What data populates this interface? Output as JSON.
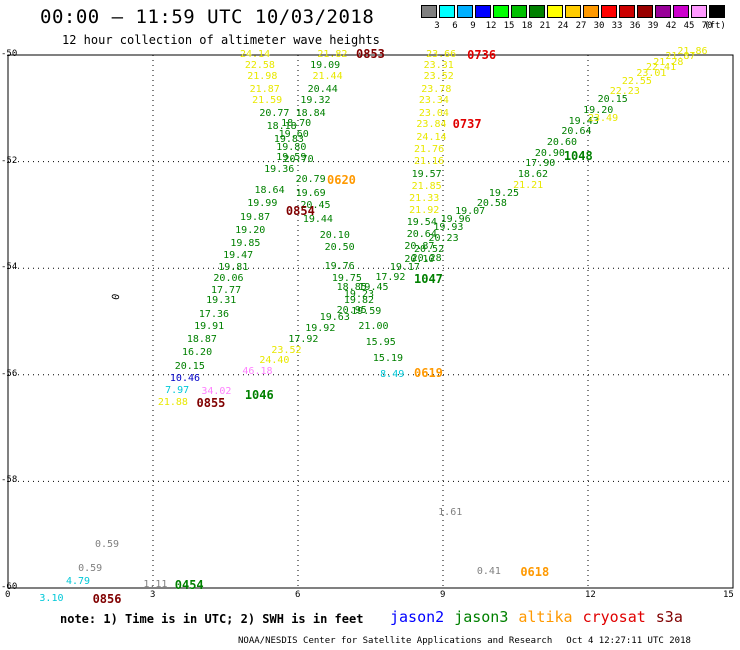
{
  "header": {
    "title": "00:00 – 11:59 UTC 10/03/2018",
    "subtitle": "12 hour collection of altimeter wave heights"
  },
  "legend": {
    "unit": "(ft)",
    "bins": [
      {
        "label": "3",
        "color": "#808080"
      },
      {
        "label": "6",
        "color": "#00ffff"
      },
      {
        "label": "9",
        "color": "#00b0ff"
      },
      {
        "label": "12",
        "color": "#0000ff"
      },
      {
        "label": "15",
        "color": "#00ff00"
      },
      {
        "label": "18",
        "color": "#00c000"
      },
      {
        "label": "21",
        "color": "#008000"
      },
      {
        "label": "24",
        "color": "#ffff00"
      },
      {
        "label": "27",
        "color": "#ffcc00"
      },
      {
        "label": "30",
        "color": "#ff9900"
      },
      {
        "label": "33",
        "color": "#ff0000"
      },
      {
        "label": "36",
        "color": "#cc0000"
      },
      {
        "label": "39",
        "color": "#990000"
      },
      {
        "label": "42",
        "color": "#990099"
      },
      {
        "label": "45",
        "color": "#cc00cc"
      },
      {
        "label": "70",
        "color": "#ff99ff"
      },
      {
        "label": "",
        "color": "#000000"
      }
    ]
  },
  "axes": {
    "y_ticks": [
      "-50",
      "-52",
      "-54",
      "-56",
      "-58",
      "-60"
    ],
    "x_ticks": [
      "0",
      "3",
      "6",
      "9",
      "12",
      "15"
    ]
  },
  "colors": {
    "grey": "#808080",
    "cyan": "#00c8d8",
    "blue": "#0000c8",
    "green": "#008000",
    "yellow": "#e8e800",
    "orange": "#ff9900",
    "red": "#e00000",
    "maroon": "#800000",
    "pink": "#ff80ff"
  },
  "observations": [
    {
      "text": "24.14",
      "c": "yellow",
      "lon": 4.8,
      "lat": -50.0
    },
    {
      "text": "22.58",
      "c": "yellow",
      "lon": 4.9,
      "lat": -50.2
    },
    {
      "text": "21.98",
      "c": "yellow",
      "lon": 4.95,
      "lat": -50.42
    },
    {
      "text": "21.87",
      "c": "yellow",
      "lon": 5.0,
      "lat": -50.65
    },
    {
      "text": "21.59",
      "c": "yellow",
      "lon": 5.05,
      "lat": -50.87
    },
    {
      "text": "20.77",
      "c": "green",
      "lon": 5.2,
      "lat": -51.1
    },
    {
      "text": "18.70",
      "c": "green",
      "lon": 5.65,
      "lat": -51.3
    },
    {
      "text": "18.18",
      "c": "green",
      "lon": 5.35,
      "lat": -51.35
    },
    {
      "text": "19.60",
      "c": "green",
      "lon": 5.6,
      "lat": -51.5
    },
    {
      "text": "19.83",
      "c": "green",
      "lon": 5.5,
      "lat": -51.6
    },
    {
      "text": "19.80",
      "c": "green",
      "lon": 5.55,
      "lat": -51.75
    },
    {
      "text": "19.59",
      "c": "green",
      "lon": 5.55,
      "lat": -51.93
    },
    {
      "text": "20.70",
      "c": "green",
      "lon": 5.7,
      "lat": -51.97
    },
    {
      "text": "19.36",
      "c": "green",
      "lon": 5.3,
      "lat": -52.15
    },
    {
      "text": "20.79",
      "c": "green",
      "lon": 5.95,
      "lat": -52.35
    },
    {
      "text": "18.64",
      "c": "green",
      "lon": 5.1,
      "lat": -52.55
    },
    {
      "text": "19.69",
      "c": "green",
      "lon": 5.95,
      "lat": -52.6
    },
    {
      "text": "19.99",
      "c": "green",
      "lon": 4.95,
      "lat": -52.8
    },
    {
      "text": "20.45",
      "c": "green",
      "lon": 6.05,
      "lat": -52.83
    },
    {
      "text": "19.87",
      "c": "green",
      "lon": 4.8,
      "lat": -53.05
    },
    {
      "text": "19.44",
      "c": "green",
      "lon": 6.1,
      "lat": -53.1
    },
    {
      "text": "19.20",
      "c": "green",
      "lon": 4.7,
      "lat": -53.3
    },
    {
      "text": "20.10",
      "c": "green",
      "lon": 6.45,
      "lat": -53.4
    },
    {
      "text": "19.85",
      "c": "green",
      "lon": 4.6,
      "lat": -53.55
    },
    {
      "text": "20.50",
      "c": "green",
      "lon": 6.55,
      "lat": -53.63
    },
    {
      "text": "19.47",
      "c": "green",
      "lon": 4.45,
      "lat": -53.78
    },
    {
      "text": "19.81",
      "c": "green",
      "lon": 4.35,
      "lat": -54.0
    },
    {
      "text": "19.76",
      "c": "green",
      "lon": 6.55,
      "lat": -53.97
    },
    {
      "text": "20.06",
      "c": "green",
      "lon": 4.25,
      "lat": -54.2
    },
    {
      "text": "19.75",
      "c": "green",
      "lon": 6.7,
      "lat": -54.2
    },
    {
      "text": "17.77",
      "c": "green",
      "lon": 4.2,
      "lat": -54.42
    },
    {
      "text": "18.85",
      "c": "green",
      "lon": 6.8,
      "lat": -54.38
    },
    {
      "text": "19.45",
      "c": "green",
      "lon": 7.25,
      "lat": -54.38
    },
    {
      "text": "19.23",
      "c": "green",
      "lon": 6.95,
      "lat": -54.5
    },
    {
      "text": "19.31",
      "c": "green",
      "lon": 4.1,
      "lat": -54.62
    },
    {
      "text": "19.82",
      "c": "green",
      "lon": 6.95,
      "lat": -54.62
    },
    {
      "text": "20.95",
      "c": "green",
      "lon": 6.8,
      "lat": -54.8
    },
    {
      "text": "19.59",
      "c": "green",
      "lon": 7.1,
      "lat": -54.83
    },
    {
      "text": "17.36",
      "c": "green",
      "lon": 3.95,
      "lat": -54.87
    },
    {
      "text": "19.63",
      "c": "green",
      "lon": 6.45,
      "lat": -54.93
    },
    {
      "text": "19.91",
      "c": "green",
      "lon": 3.85,
      "lat": -55.1
    },
    {
      "text": "21.00",
      "c": "green",
      "lon": 7.25,
      "lat": -55.1
    },
    {
      "text": "19.92",
      "c": "green",
      "lon": 6.15,
      "lat": -55.15
    },
    {
      "text": "18.87",
      "c": "green",
      "lon": 3.7,
      "lat": -55.35
    },
    {
      "text": "17.92",
      "c": "green",
      "lon": 5.8,
      "lat": -55.35
    },
    {
      "text": "15.95",
      "c": "green",
      "lon": 7.4,
      "lat": -55.4
    },
    {
      "text": "16.20",
      "c": "green",
      "lon": 3.6,
      "lat": -55.6
    },
    {
      "text": "23.52",
      "c": "yellow",
      "lon": 5.45,
      "lat": -55.55
    },
    {
      "text": "15.19",
      "c": "green",
      "lon": 7.55,
      "lat": -55.7
    },
    {
      "text": "20.15",
      "c": "green",
      "lon": 3.45,
      "lat": -55.85
    },
    {
      "text": "24.40",
      "c": "yellow",
      "lon": 5.2,
      "lat": -55.75
    },
    {
      "text": "46.18",
      "c": "pink",
      "lon": 4.85,
      "lat": -55.95
    },
    {
      "text": "10.46",
      "c": "blue",
      "lon": 3.35,
      "lat": -56.07
    },
    {
      "text": "7.97",
      "c": "cyan",
      "lon": 3.25,
      "lat": -56.3
    },
    {
      "text": "34.02",
      "c": "pink",
      "lon": 4.0,
      "lat": -56.33
    },
    {
      "text": "21.88",
      "c": "yellow",
      "lon": 3.1,
      "lat": -56.53
    },
    {
      "text": "8.49",
      "c": "cyan",
      "lon": 7.7,
      "lat": -56.0
    },
    {
      "text": "21.82",
      "c": "yellow",
      "lon": 6.4,
      "lat": -50.0
    },
    {
      "text": "19.09",
      "c": "green",
      "lon": 6.25,
      "lat": -50.2
    },
    {
      "text": "21.44",
      "c": "yellow",
      "lon": 6.3,
      "lat": -50.42
    },
    {
      "text": "20.44",
      "c": "green",
      "lon": 6.2,
      "lat": -50.65
    },
    {
      "text": "19.32",
      "c": "green",
      "lon": 6.05,
      "lat": -50.87
    },
    {
      "text": "18.84",
      "c": "green",
      "lon": 5.95,
      "lat": -51.1
    },
    {
      "text": "23.66",
      "c": "yellow",
      "lon": 8.65,
      "lat": -50.0
    },
    {
      "text": "23.31",
      "c": "yellow",
      "lon": 8.6,
      "lat": -50.2
    },
    {
      "text": "23.52",
      "c": "yellow",
      "lon": 8.6,
      "lat": -50.42
    },
    {
      "text": "23.78",
      "c": "yellow",
      "lon": 8.55,
      "lat": -50.65
    },
    {
      "text": "23.34",
      "c": "yellow",
      "lon": 8.5,
      "lat": -50.87
    },
    {
      "text": "23.04",
      "c": "yellow",
      "lon": 8.5,
      "lat": -51.1
    },
    {
      "text": "23.84",
      "c": "yellow",
      "lon": 8.45,
      "lat": -51.32
    },
    {
      "text": "24.14",
      "c": "yellow",
      "lon": 8.45,
      "lat": -51.55
    },
    {
      "text": "21.76",
      "c": "yellow",
      "lon": 8.4,
      "lat": -51.78
    },
    {
      "text": "21.16",
      "c": "yellow",
      "lon": 8.4,
      "lat": -52.0
    },
    {
      "text": "19.57",
      "c": "green",
      "lon": 8.35,
      "lat": -52.25
    },
    {
      "text": "21.85",
      "c": "yellow",
      "lon": 8.35,
      "lat": -52.47
    },
    {
      "text": "21.33",
      "c": "yellow",
      "lon": 8.3,
      "lat": -52.7
    },
    {
      "text": "21.92",
      "c": "yellow",
      "lon": 8.3,
      "lat": -52.93
    },
    {
      "text": "19.54",
      "c": "green",
      "lon": 8.25,
      "lat": -53.15
    },
    {
      "text": "20.64",
      "c": "green",
      "lon": 8.25,
      "lat": -53.38
    },
    {
      "text": "20.87",
      "c": "green",
      "lon": 8.2,
      "lat": -53.6
    },
    {
      "text": "20.52",
      "c": "green",
      "lon": 8.4,
      "lat": -53.65
    },
    {
      "text": "20.23",
      "c": "green",
      "lon": 8.7,
      "lat": -53.45
    },
    {
      "text": "20.28",
      "c": "green",
      "lon": 8.35,
      "lat": -53.82
    },
    {
      "text": "20.10",
      "c": "green",
      "lon": 8.2,
      "lat": -53.85
    },
    {
      "text": "19.17",
      "c": "green",
      "lon": 7.9,
      "lat": -54.0
    },
    {
      "text": "17.92",
      "c": "green",
      "lon": 7.6,
      "lat": -54.18
    },
    {
      "text": "19.93",
      "c": "green",
      "lon": 8.8,
      "lat": -53.25
    },
    {
      "text": "19.96",
      "c": "green",
      "lon": 8.95,
      "lat": -53.1
    },
    {
      "text": "19.07",
      "c": "green",
      "lon": 9.25,
      "lat": -52.95
    },
    {
      "text": "20.58",
      "c": "green",
      "lon": 9.7,
      "lat": -52.8
    },
    {
      "text": "19.25",
      "c": "green",
      "lon": 9.95,
      "lat": -52.6
    },
    {
      "text": "21.21",
      "c": "yellow",
      "lon": 10.45,
      "lat": -52.45
    },
    {
      "text": "18.62",
      "c": "green",
      "lon": 10.55,
      "lat": -52.25
    },
    {
      "text": "17.90",
      "c": "green",
      "lon": 10.7,
      "lat": -52.05
    },
    {
      "text": "20.90",
      "c": "green",
      "lon": 10.9,
      "lat": -51.85
    },
    {
      "text": "20.60",
      "c": "green",
      "lon": 11.15,
      "lat": -51.65
    },
    {
      "text": "20.64",
      "c": "green",
      "lon": 11.45,
      "lat": -51.45
    },
    {
      "text": "19.43",
      "c": "green",
      "lon": 11.6,
      "lat": -51.25
    },
    {
      "text": "19.20",
      "c": "green",
      "lon": 11.9,
      "lat": -51.05
    },
    {
      "text": "20.15",
      "c": "green",
      "lon": 12.2,
      "lat": -50.85
    },
    {
      "text": "23.49",
      "c": "yellow",
      "lon": 12.0,
      "lat": -51.2
    },
    {
      "text": "22.23",
      "c": "yellow",
      "lon": 12.45,
      "lat": -50.7
    },
    {
      "text": "22.55",
      "c": "yellow",
      "lon": 12.7,
      "lat": -50.5
    },
    {
      "text": "23.01",
      "c": "yellow",
      "lon": 13.0,
      "lat": -50.35
    },
    {
      "text": "22.41",
      "c": "yellow",
      "lon": 13.2,
      "lat": -50.25
    },
    {
      "text": "21.28",
      "c": "yellow",
      "lon": 13.35,
      "lat": -50.15
    },
    {
      "text": "21.87",
      "c": "yellow",
      "lon": 13.6,
      "lat": -50.03
    },
    {
      "text": "21.86",
      "c": "yellow",
      "lon": 13.85,
      "lat": -49.95
    },
    {
      "text": "0.59",
      "c": "grey",
      "lon": 1.8,
      "lat": -59.2
    },
    {
      "text": "0.59",
      "c": "grey",
      "lon": 1.45,
      "lat": -59.65
    },
    {
      "text": "4.79",
      "c": "cyan",
      "lon": 1.2,
      "lat": -59.88
    },
    {
      "text": "3.10",
      "c": "cyan",
      "lon": 0.65,
      "lat": -60.2
    },
    {
      "text": "1.11",
      "c": "grey",
      "lon": 2.8,
      "lat": -59.95
    },
    {
      "text": "1.61",
      "c": "grey",
      "lon": 8.9,
      "lat": -58.6
    },
    {
      "text": "0.41",
      "c": "grey",
      "lon": 9.7,
      "lat": -59.7
    }
  ],
  "pass_times": [
    {
      "text": "0853",
      "c": "maroon",
      "lon": 7.2,
      "lat": -49.98
    },
    {
      "text": "0736",
      "c": "red",
      "lon": 9.5,
      "lat": -50.0
    },
    {
      "text": "0737",
      "c": "red",
      "lon": 9.2,
      "lat": -51.3
    },
    {
      "text": "1048",
      "c": "green",
      "lon": 11.5,
      "lat": -51.9
    },
    {
      "text": "0620",
      "c": "orange",
      "lon": 6.6,
      "lat": -52.35
    },
    {
      "text": "0854",
      "c": "maroon",
      "lon": 5.75,
      "lat": -52.93
    },
    {
      "text": "1047",
      "c": "green",
      "lon": 8.4,
      "lat": -54.2
    },
    {
      "text": "0619",
      "c": "orange",
      "lon": 8.4,
      "lat": -55.97
    },
    {
      "text": "1046",
      "c": "green",
      "lon": 4.9,
      "lat": -56.38
    },
    {
      "text": "0855",
      "c": "maroon",
      "lon": 3.9,
      "lat": -56.53
    },
    {
      "text": "0454",
      "c": "green",
      "lon": 3.45,
      "lat": -59.95
    },
    {
      "text": "0618",
      "c": "orange",
      "lon": 10.6,
      "lat": -59.7
    },
    {
      "text": "0856",
      "c": "maroon",
      "lon": 1.75,
      "lat": -60.2
    }
  ],
  "contour_mark": "0",
  "note": "note: 1) Time is in UTC; 2) SWH is in feet",
  "satellites": [
    {
      "name": "jason2",
      "color": "#0000ff"
    },
    {
      "name": "jason3",
      "color": "#008000"
    },
    {
      "name": "altika",
      "color": "#ff9900"
    },
    {
      "name": "cryosat",
      "color": "#e00000"
    },
    {
      "name": "s3a",
      "color": "#800000"
    }
  ],
  "credit": {
    "org": "NOAA/NESDIS Center for Satellite Applications and Research",
    "timestamp": "Oct  4 12:27:11 UTC 2018"
  }
}
